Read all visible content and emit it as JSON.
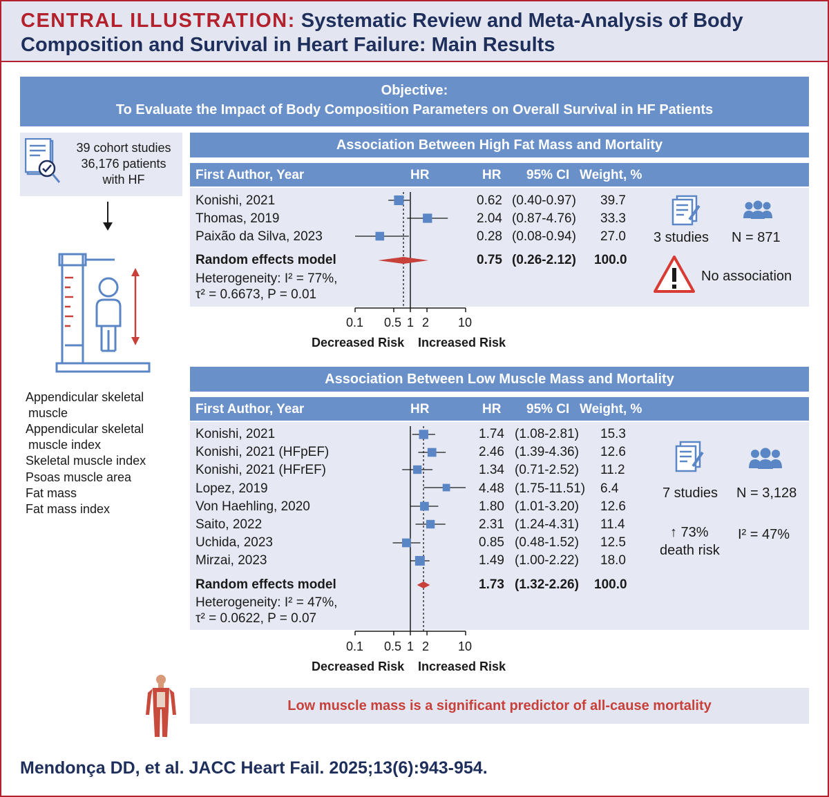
{
  "header": {
    "lead": "CENTRAL ILLUSTRATION:",
    "title_line1": "Systematic Review and Meta-Analysis of Body",
    "title_line2": "Composition and Survival in Heart Failure: Main Results"
  },
  "objective": {
    "label": "Objective:",
    "text": "To Evaluate the Impact of Body Composition Parameters on Overall Survival in HF Patients"
  },
  "sidebar": {
    "studies_line1": "39 cohort studies",
    "studies_line2": "36,176 patients",
    "studies_line3": "with HF",
    "parameters": [
      "Appendicular skeletal",
      "muscle",
      "Appendicular skeletal",
      "muscle index",
      "Skeletal muscle index",
      "Psoas muscle area",
      "Fat mass",
      "Fat mass index"
    ]
  },
  "columns": {
    "author": "First Author, Year",
    "hr_plot": "HR",
    "hr": "HR",
    "ci": "95% CI",
    "weight": "Weight, %"
  },
  "axis": {
    "ticks": [
      "0.1",
      "0.5",
      "1",
      "2",
      "10"
    ],
    "decreased": "Decreased Risk",
    "increased": "Increased Risk"
  },
  "chart_data": [
    {
      "type": "forest",
      "title": "Association Between High Fat Mass and Mortality",
      "x_scale": "log",
      "xlim": [
        0.1,
        10
      ],
      "reference_line": 1,
      "pooled_dashed_line": 0.75,
      "studies": [
        {
          "author": "Konishi, 2021",
          "hr": 0.62,
          "ci_low": 0.4,
          "ci_high": 0.97,
          "hr_text": "0.62",
          "ci_text": "(0.40-0.97)",
          "weight": "39.7"
        },
        {
          "author": "Thomas, 2019",
          "hr": 2.04,
          "ci_low": 0.87,
          "ci_high": 4.76,
          "hr_text": "2.04",
          "ci_text": "(0.87-4.76)",
          "weight": "33.3"
        },
        {
          "author": "Paixão da Silva, 2023",
          "hr": 0.28,
          "ci_low": 0.08,
          "ci_high": 0.94,
          "hr_text": "0.28",
          "ci_text": "(0.08-0.94)",
          "weight": "27.0"
        }
      ],
      "pooled": {
        "label": "Random effects model",
        "hr": 0.75,
        "ci_low": 0.26,
        "ci_high": 2.12,
        "hr_text": "0.75",
        "ci_text": "(0.26-2.12)",
        "weight": "100.0"
      },
      "heterogeneity_line1": "Heterogeneity: I² = 77%,",
      "heterogeneity_line2": "τ² = 0.6673, P = 0.01"
    },
    {
      "type": "forest",
      "title": "Association Between Low Muscle Mass and Mortality",
      "x_scale": "log",
      "xlim": [
        0.1,
        10
      ],
      "reference_line": 1,
      "pooled_dashed_line": 1.73,
      "studies": [
        {
          "author": "Konishi, 2021",
          "hr": 1.74,
          "ci_low": 1.08,
          "ci_high": 2.81,
          "hr_text": "1.74",
          "ci_text": "(1.08-2.81)",
          "weight": "15.3"
        },
        {
          "author": "Konishi, 2021 (HFpEF)",
          "hr": 2.46,
          "ci_low": 1.39,
          "ci_high": 4.36,
          "hr_text": "2.46",
          "ci_text": "(1.39-4.36)",
          "weight": "12.6"
        },
        {
          "author": "Konishi, 2021 (HFrEF)",
          "hr": 1.34,
          "ci_low": 0.71,
          "ci_high": 2.52,
          "hr_text": "1.34",
          "ci_text": "(0.71-2.52)",
          "weight": "11.2"
        },
        {
          "author": "Lopez, 2019",
          "hr": 4.48,
          "ci_low": 1.75,
          "ci_high": 11.51,
          "hr_text": "4.48",
          "ci_text": "(1.75-11.51)",
          "weight": "6.4"
        },
        {
          "author": "Von Haehling, 2020",
          "hr": 1.8,
          "ci_low": 1.01,
          "ci_high": 3.2,
          "hr_text": "1.80",
          "ci_text": "(1.01-3.20)",
          "weight": "12.6"
        },
        {
          "author": "Saito, 2022",
          "hr": 2.31,
          "ci_low": 1.24,
          "ci_high": 4.31,
          "hr_text": "2.31",
          "ci_text": "(1.24-4.31)",
          "weight": "11.4"
        },
        {
          "author": "Uchida, 2023",
          "hr": 0.85,
          "ci_low": 0.48,
          "ci_high": 1.52,
          "hr_text": "0.85",
          "ci_text": "(0.48-1.52)",
          "weight": "12.5"
        },
        {
          "author": "Mirzai, 2023",
          "hr": 1.49,
          "ci_low": 1.0,
          "ci_high": 2.22,
          "hr_text": "1.49",
          "ci_text": "(1.00-2.22)",
          "weight": "18.0"
        }
      ],
      "pooled": {
        "label": "Random effects model",
        "hr": 1.73,
        "ci_low": 1.32,
        "ci_high": 2.26,
        "hr_text": "1.73",
        "ci_text": "(1.32-2.26)",
        "weight": "100.0"
      },
      "heterogeneity_line1": "Heterogeneity: I² = 47%,",
      "heterogeneity_line2": "τ² = 0.0622, P = 0.07"
    }
  ],
  "fat_summary": {
    "studies": "3 studies",
    "n": "N = 871",
    "result": "No association"
  },
  "muscle_summary": {
    "studies": "7 studies",
    "n": "N = 3,128",
    "risk_line1": "↑ 73%",
    "risk_line2": "death risk",
    "i2": "I² = 47%"
  },
  "conclusion": "Low muscle mass is a significant predictor of all-cause mortality",
  "citation": "Mendonça DD, et al. JACC Heart Fail. 2025;13(6):943-954.",
  "colors": {
    "accent_red": "#b3222c",
    "navy": "#1f2f5c",
    "band_blue": "#6a90c9",
    "panel_bg": "#e6e9f3",
    "marker_blue": "#5b86c6",
    "diamond_red": "#c8403a",
    "warning_red": "#d83a34"
  }
}
